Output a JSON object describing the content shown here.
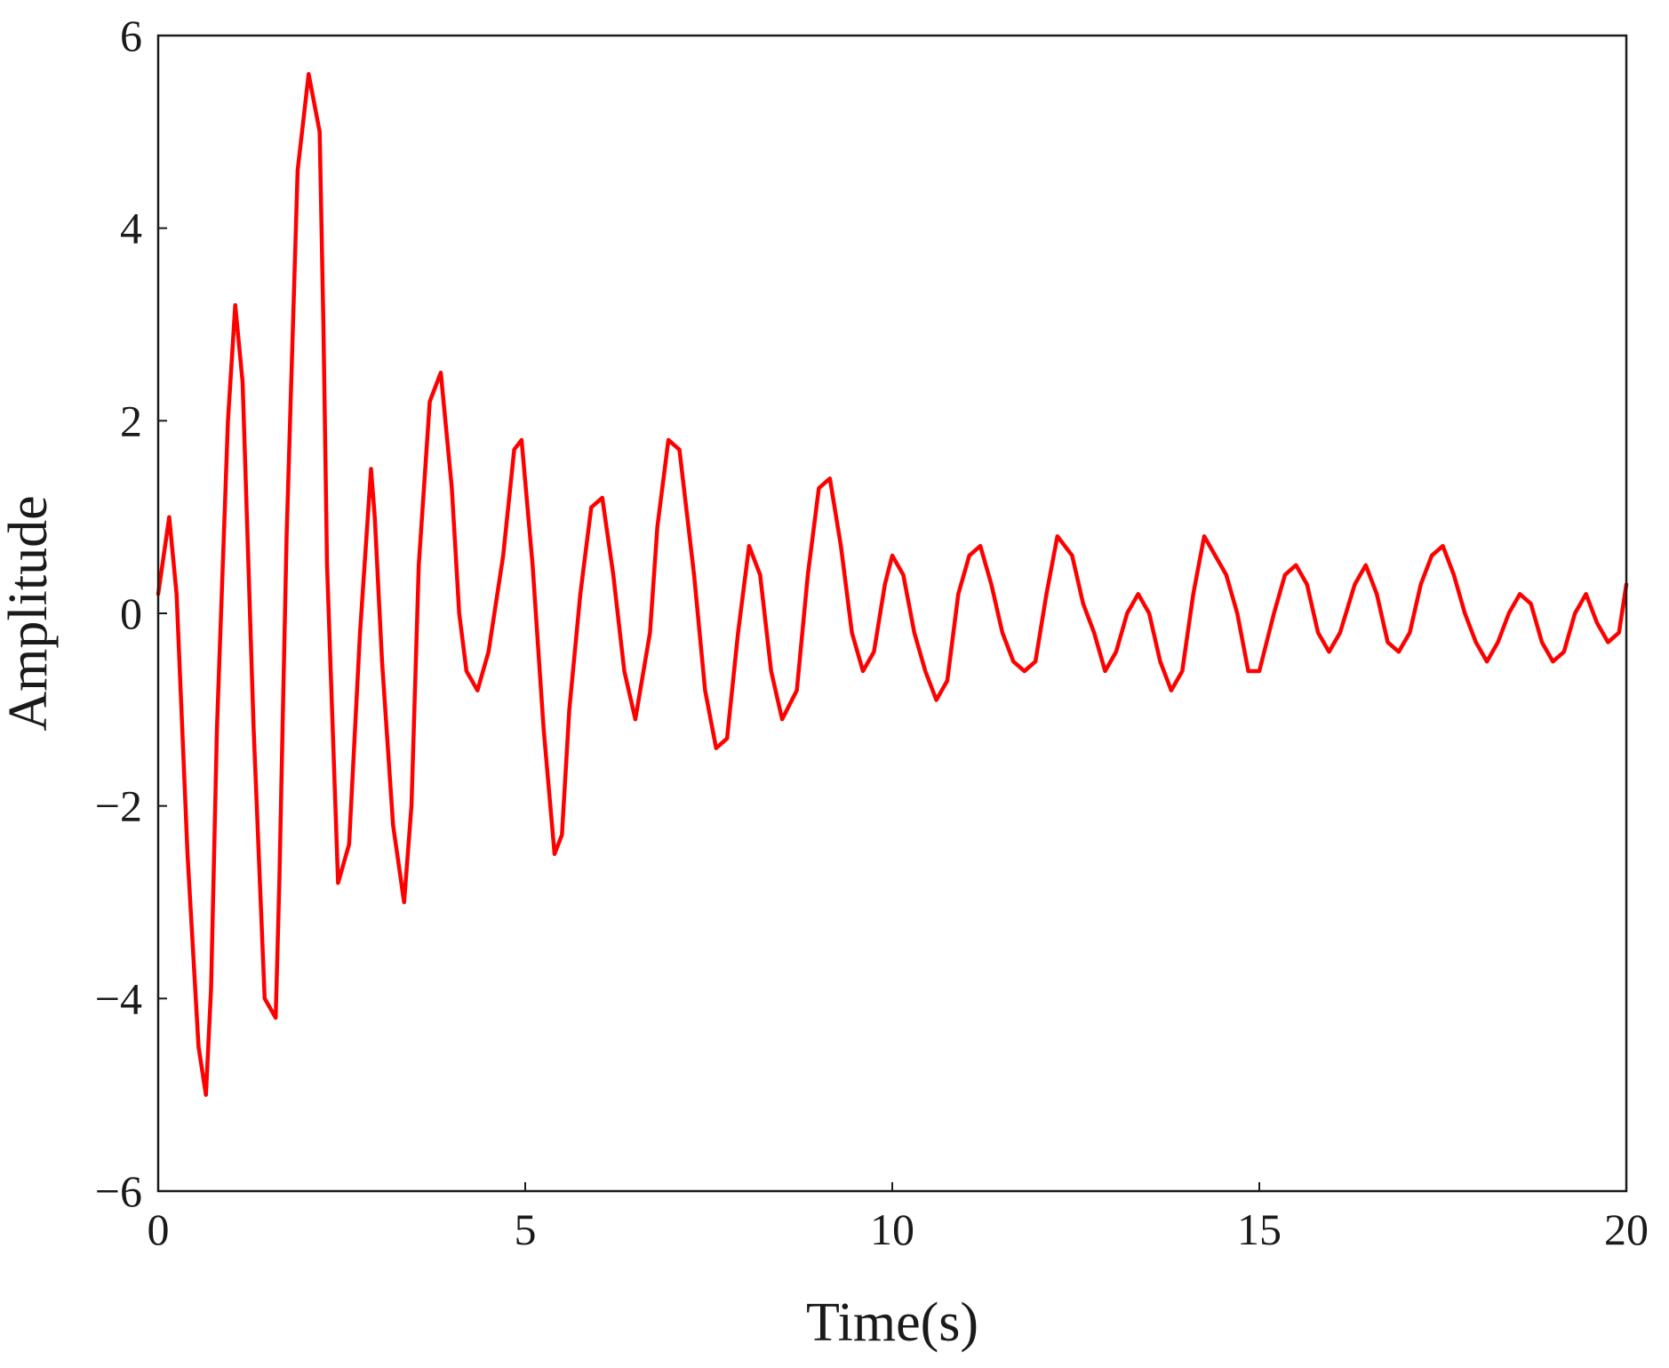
{
  "chart_data": {
    "type": "line",
    "title": "",
    "xlabel": "Time(s)",
    "ylabel": "Amplitude",
    "xlim": [
      0,
      20
    ],
    "ylim": [
      -6,
      6
    ],
    "xticks": [
      0,
      5,
      10,
      15,
      20
    ],
    "yticks": [
      -6,
      -4,
      -2,
      0,
      2,
      4,
      6
    ],
    "xtick_labels": [
      "0",
      "5",
      "10",
      "15",
      "20"
    ],
    "ytick_labels": [
      "−6",
      "−4",
      "−2",
      "0",
      "2",
      "4",
      "6"
    ],
    "grid": false,
    "legend": "none",
    "line_color": "#ff0000",
    "series": [
      {
        "x": [
          0.0,
          0.15,
          0.25,
          0.4,
          0.55,
          0.65,
          0.72,
          0.8,
          0.95,
          1.05,
          1.15,
          1.3,
          1.45,
          1.6,
          1.65,
          1.75,
          1.9,
          2.05,
          2.2,
          2.25,
          2.3,
          2.45,
          2.6,
          2.75,
          2.9,
          2.95,
          3.05,
          3.2,
          3.35,
          3.45,
          3.55,
          3.7,
          3.85,
          4.0,
          4.1,
          4.2,
          4.35,
          4.5,
          4.7,
          4.85,
          4.95,
          5.1,
          5.25,
          5.4,
          5.5,
          5.6,
          5.75,
          5.9,
          6.05,
          6.2,
          6.35,
          6.5,
          6.7,
          6.8,
          6.95,
          7.1,
          7.3,
          7.45,
          7.6,
          7.75,
          7.9,
          8.05,
          8.2,
          8.35,
          8.5,
          8.7,
          8.85,
          9.0,
          9.15,
          9.3,
          9.45,
          9.6,
          9.75,
          9.9,
          10.0,
          10.15,
          10.3,
          10.45,
          10.6,
          10.75,
          10.9,
          11.05,
          11.2,
          11.35,
          11.5,
          11.65,
          11.8,
          11.95,
          12.1,
          12.25,
          12.45,
          12.6,
          12.75,
          12.9,
          13.05,
          13.2,
          13.35,
          13.5,
          13.65,
          13.8,
          13.95,
          14.1,
          14.25,
          14.4,
          14.55,
          14.7,
          14.85,
          15.0,
          15.2,
          15.35,
          15.5,
          15.65,
          15.8,
          15.95,
          16.1,
          16.3,
          16.45,
          16.6,
          16.75,
          16.9,
          17.05,
          17.2,
          17.35,
          17.5,
          17.65,
          17.8,
          17.95,
          18.1,
          18.25,
          18.4,
          18.55,
          18.7,
          18.85,
          19.0,
          19.15,
          19.3,
          19.45,
          19.6,
          19.75,
          19.9,
          20.0
        ],
        "y": [
          0.2,
          1.0,
          0.2,
          -2.5,
          -4.5,
          -5.0,
          -3.9,
          -1.2,
          2.0,
          3.2,
          2.4,
          -1.2,
          -4.0,
          -4.2,
          -2.8,
          0.8,
          4.6,
          5.6,
          5.0,
          3.0,
          0.5,
          -2.8,
          -2.4,
          -0.2,
          1.5,
          1.0,
          -0.5,
          -2.2,
          -3.0,
          -2.0,
          0.5,
          2.2,
          2.5,
          1.3,
          0.0,
          -0.6,
          -0.8,
          -0.4,
          0.6,
          1.7,
          1.8,
          0.5,
          -1.2,
          -2.5,
          -2.3,
          -1.0,
          0.2,
          1.1,
          1.2,
          0.4,
          -0.6,
          -1.1,
          -0.2,
          0.9,
          1.8,
          1.7,
          0.4,
          -0.8,
          -1.4,
          -1.3,
          -0.2,
          0.7,
          0.4,
          -0.6,
          -1.1,
          -0.8,
          0.4,
          1.3,
          1.4,
          0.7,
          -0.2,
          -0.6,
          -0.4,
          0.3,
          0.6,
          0.4,
          -0.2,
          -0.6,
          -0.9,
          -0.7,
          0.2,
          0.6,
          0.7,
          0.3,
          -0.2,
          -0.5,
          -0.6,
          -0.5,
          0.2,
          0.8,
          0.6,
          0.1,
          -0.2,
          -0.6,
          -0.4,
          0.0,
          0.2,
          0.0,
          -0.5,
          -0.8,
          -0.6,
          0.2,
          0.8,
          0.6,
          0.4,
          0.0,
          -0.6,
          -0.6,
          0.0,
          0.4,
          0.5,
          0.3,
          -0.2,
          -0.4,
          -0.2,
          0.3,
          0.5,
          0.2,
          -0.3,
          -0.4,
          -0.2,
          0.3,
          0.6,
          0.7,
          0.4,
          0.0,
          -0.3,
          -0.5,
          -0.3,
          0.0,
          0.2,
          0.1,
          -0.3,
          -0.5,
          -0.4,
          0.0,
          0.2,
          -0.1,
          -0.3,
          -0.2,
          0.3
        ]
      }
    ]
  }
}
